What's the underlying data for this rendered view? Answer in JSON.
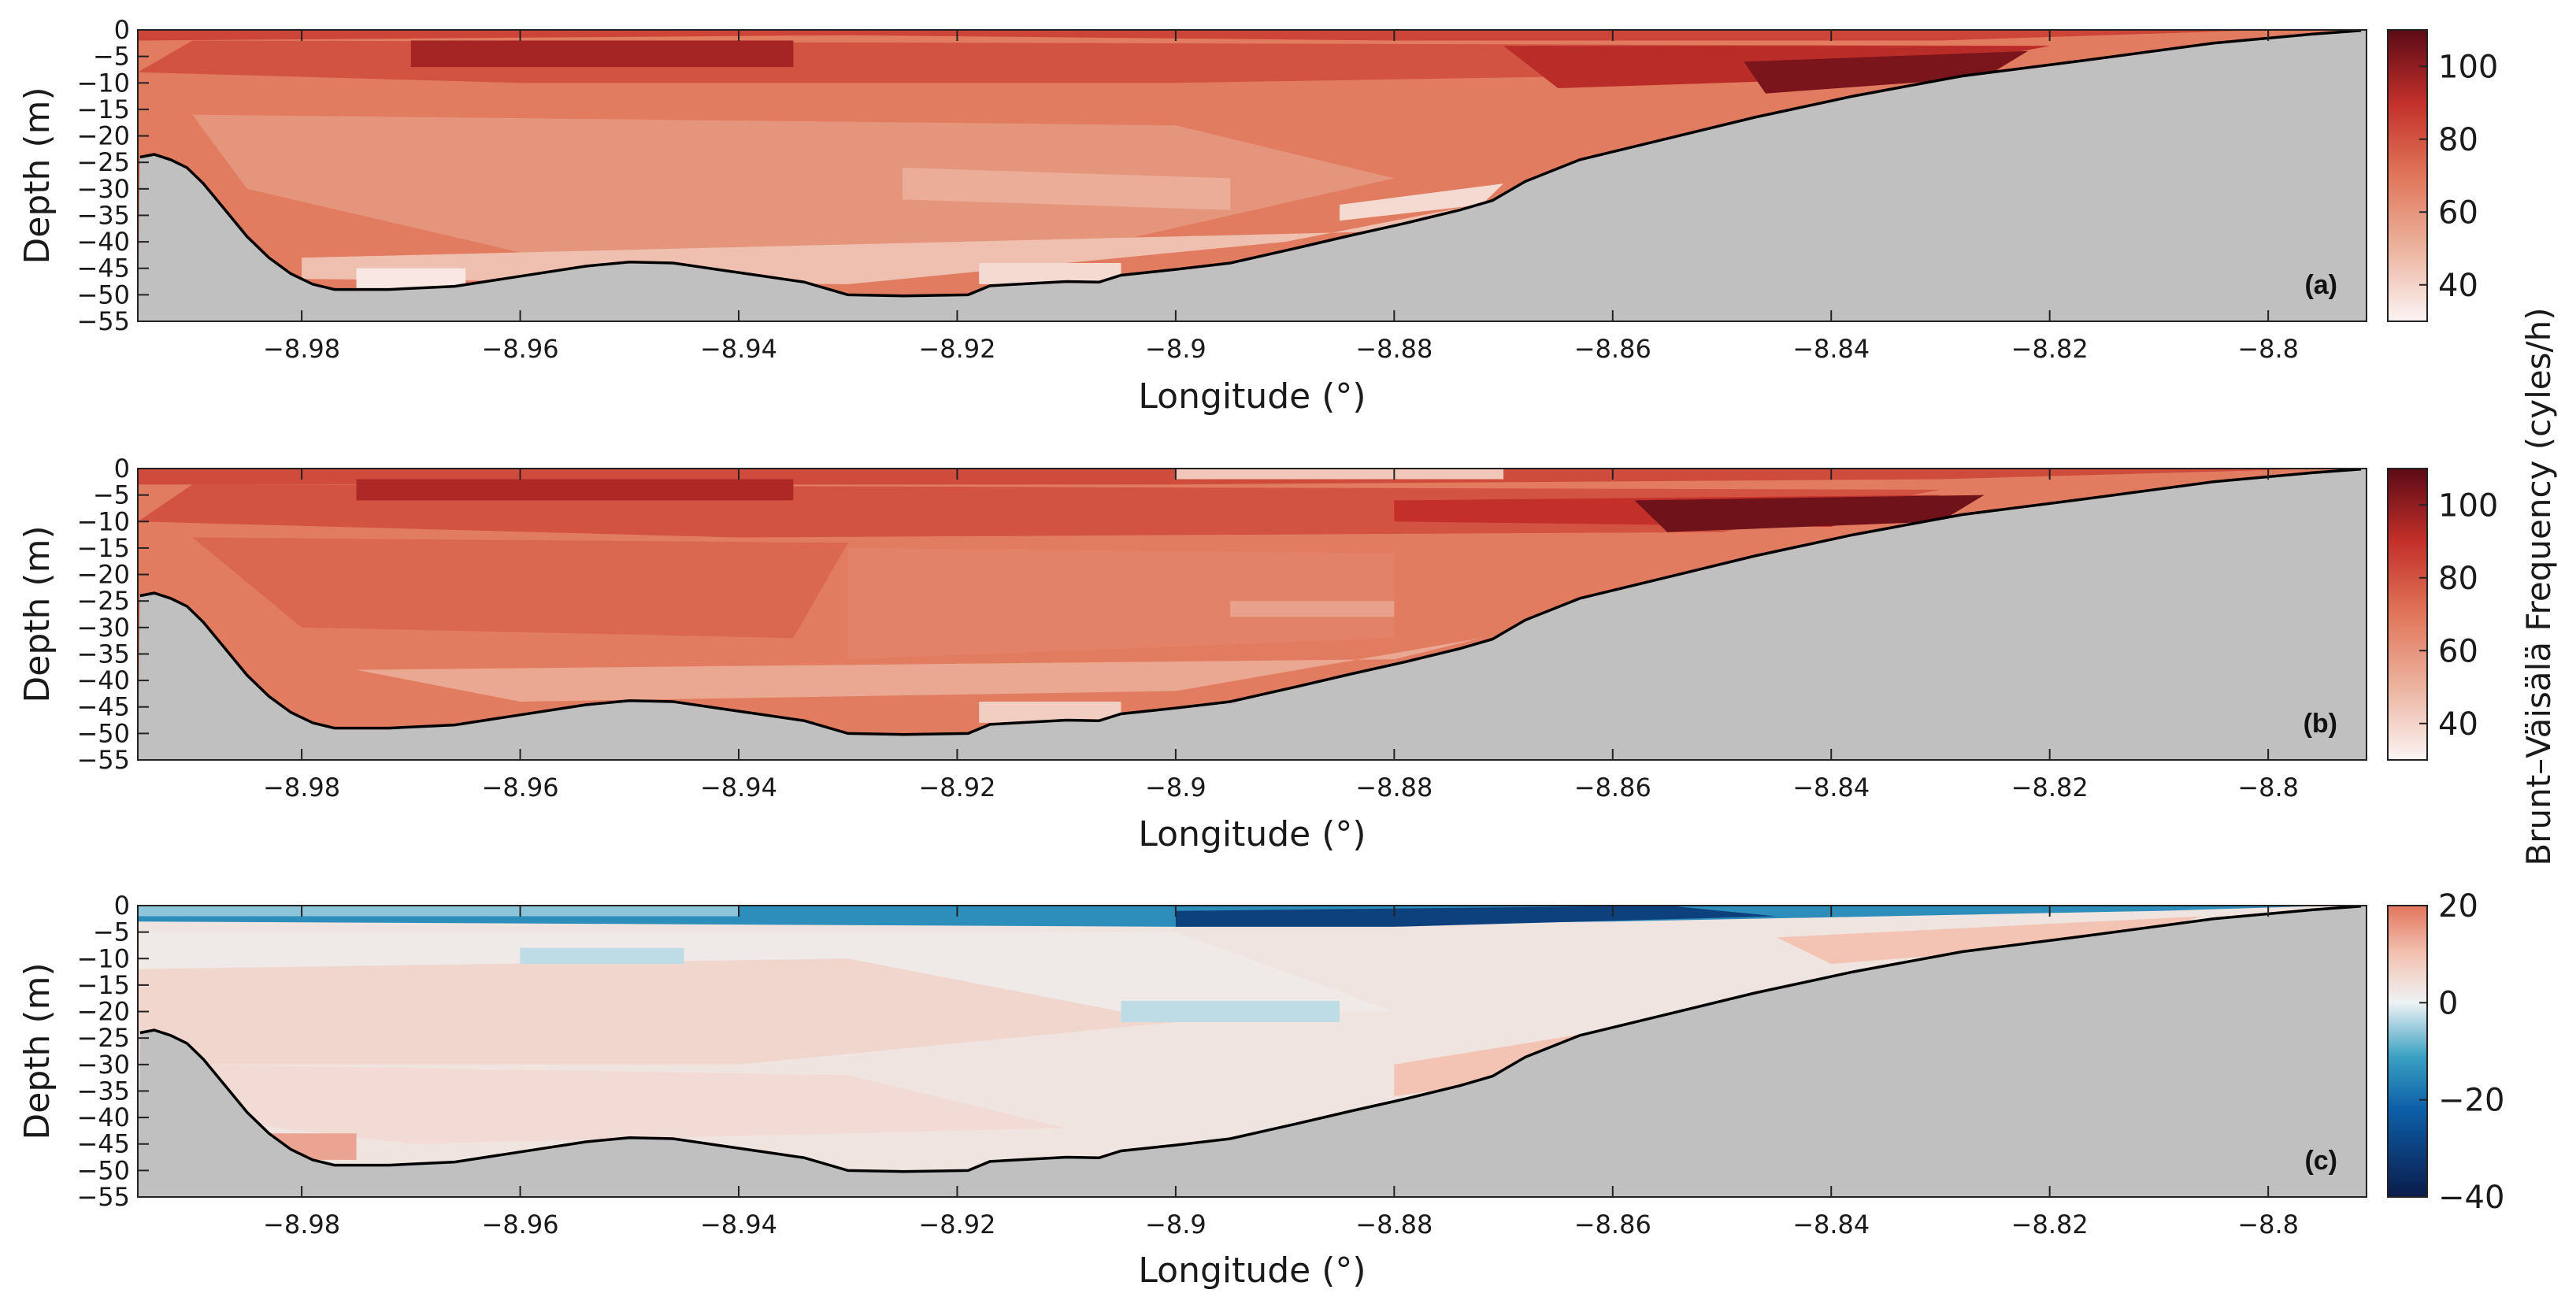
{
  "chart_data": [
    {
      "id": "a",
      "type": "heatmap",
      "panel_label": "(a)",
      "xlabel": "Longitude (°)",
      "ylabel": "Depth (m)",
      "xlim": [
        -8.995,
        -8.791
      ],
      "ylim": [
        -55,
        0
      ],
      "xticks": [
        -8.98,
        -8.96,
        -8.94,
        -8.92,
        -8.9,
        -8.88,
        -8.86,
        -8.84,
        -8.82,
        -8.8
      ],
      "xtick_labels": [
        "−8.98",
        "−8.96",
        "−8.94",
        "−8.92",
        "−8.9",
        "−8.88",
        "−8.86",
        "−8.84",
        "−8.82",
        "−8.8"
      ],
      "yticks": [
        0,
        -5,
        -10,
        -15,
        -20,
        -25,
        -30,
        -35,
        -40,
        -45,
        -50,
        -55
      ],
      "ytick_labels": [
        "0",
        "−5",
        "−10",
        "−15",
        "−20",
        "−25",
        "−30",
        "−35",
        "−40",
        "−45",
        "−50",
        "−55"
      ],
      "colorbar": {
        "range": [
          30,
          110
        ],
        "ticks": [
          40,
          60,
          80,
          100
        ],
        "tick_labels": [
          "40",
          "60",
          "80",
          "100"
        ],
        "colormap": "white-red"
      },
      "layers": [
        {
          "pts": [
            [
              -8.995,
              0
            ],
            [
              -8.8,
              0
            ],
            [
              -8.83,
              -2
            ],
            [
              -8.88,
              -2
            ],
            [
              -8.93,
              -1
            ],
            [
              -8.995,
              -2
            ]
          ],
          "v": 84
        },
        {
          "pts": [
            [
              -8.99,
              -2
            ],
            [
              -8.82,
              -3
            ],
            [
              -8.84,
              -8
            ],
            [
              -8.9,
              -10
            ],
            [
              -8.96,
              -10
            ],
            [
              -8.995,
              -8
            ]
          ],
          "v": 80
        },
        {
          "pts": [
            [
              -8.97,
              -2
            ],
            [
              -8.935,
              -2
            ],
            [
              -8.935,
              -7
            ],
            [
              -8.97,
              -7
            ]
          ],
          "v": 96
        },
        {
          "pts": [
            [
              -8.87,
              -3
            ],
            [
              -8.82,
              -3
            ],
            [
              -8.835,
              -9
            ],
            [
              -8.865,
              -11
            ]
          ],
          "v": 92
        },
        {
          "pts": [
            [
              -8.848,
              -6
            ],
            [
              -8.822,
              -4
            ],
            [
              -8.826,
              -9
            ],
            [
              -8.846,
              -12
            ]
          ],
          "v": 104
        },
        {
          "pts": [
            [
              -8.99,
              -16
            ],
            [
              -8.9,
              -18
            ],
            [
              -8.88,
              -28
            ],
            [
              -8.91,
              -42
            ],
            [
              -8.96,
              -42
            ],
            [
              -8.985,
              -30
            ]
          ],
          "v": 60
        },
        {
          "pts": [
            [
              -8.925,
              -26
            ],
            [
              -8.895,
              -28
            ],
            [
              -8.895,
              -34
            ],
            [
              -8.925,
              -32
            ]
          ],
          "v": 52
        },
        {
          "pts": [
            [
              -8.98,
              -43
            ],
            [
              -8.88,
              -38
            ],
            [
              -8.87,
              -32
            ],
            [
              -8.89,
              -40
            ],
            [
              -8.93,
              -48
            ],
            [
              -8.98,
              -47
            ]
          ],
          "v": 46
        },
        {
          "pts": [
            [
              -8.975,
              -45
            ],
            [
              -8.965,
              -45
            ],
            [
              -8.965,
              -49
            ],
            [
              -8.975,
              -49
            ]
          ],
          "v": 34
        },
        {
          "pts": [
            [
              -8.918,
              -44
            ],
            [
              -8.905,
              -44
            ],
            [
              -8.905,
              -48
            ],
            [
              -8.918,
              -48
            ]
          ],
          "v": 38
        },
        {
          "pts": [
            [
              -8.885,
              -33
            ],
            [
              -8.87,
              -29
            ],
            [
              -8.872,
              -33
            ],
            [
              -8.885,
              -36
            ]
          ],
          "v": 38
        }
      ]
    },
    {
      "id": "b",
      "type": "heatmap",
      "panel_label": "(b)",
      "xlabel": "Longitude (°)",
      "ylabel": "Depth (m)",
      "xlim": [
        -8.995,
        -8.791
      ],
      "ylim": [
        -55,
        0
      ],
      "xticks": [
        -8.98,
        -8.96,
        -8.94,
        -8.92,
        -8.9,
        -8.88,
        -8.86,
        -8.84,
        -8.82,
        -8.8
      ],
      "xtick_labels": [
        "−8.98",
        "−8.96",
        "−8.94",
        "−8.92",
        "−8.9",
        "−8.88",
        "−8.86",
        "−8.84",
        "−8.82",
        "−8.8"
      ],
      "yticks": [
        0,
        -5,
        -10,
        -15,
        -20,
        -25,
        -30,
        -35,
        -40,
        -45,
        -50,
        -55
      ],
      "ytick_labels": [
        "0",
        "−5",
        "−10",
        "−15",
        "−20",
        "−25",
        "−30",
        "−35",
        "−40",
        "−45",
        "−50",
        "−55"
      ],
      "colorbar": {
        "range": [
          30,
          110
        ],
        "ticks": [
          40,
          60,
          80,
          100
        ],
        "tick_labels": [
          "40",
          "60",
          "80",
          "100"
        ],
        "colormap": "white-red"
      },
      "layers": [
        {
          "pts": [
            [
              -8.995,
              0
            ],
            [
              -8.795,
              0
            ],
            [
              -8.83,
              -2
            ],
            [
              -8.9,
              -3
            ],
            [
              -8.995,
              -3
            ]
          ],
          "v": 82
        },
        {
          "pts": [
            [
              -8.9,
              0
            ],
            [
              -8.87,
              0
            ],
            [
              -8.87,
              -2
            ],
            [
              -8.9,
              -2
            ]
          ],
          "v": 44
        },
        {
          "pts": [
            [
              -8.99,
              -3
            ],
            [
              -8.83,
              -4
            ],
            [
              -8.85,
              -12
            ],
            [
              -8.94,
              -13
            ],
            [
              -8.995,
              -10
            ]
          ],
          "v": 80
        },
        {
          "pts": [
            [
              -8.975,
              -2
            ],
            [
              -8.935,
              -2
            ],
            [
              -8.935,
              -6
            ],
            [
              -8.975,
              -6
            ]
          ],
          "v": 94
        },
        {
          "pts": [
            [
              -8.88,
              -6
            ],
            [
              -8.83,
              -5
            ],
            [
              -8.84,
              -11
            ],
            [
              -8.88,
              -10
            ]
          ],
          "v": 90
        },
        {
          "pts": [
            [
              -8.858,
              -6
            ],
            [
              -8.826,
              -5
            ],
            [
              -8.83,
              -10
            ],
            [
              -8.855,
              -12
            ]
          ],
          "v": 106
        },
        {
          "pts": [
            [
              -8.99,
              -13
            ],
            [
              -8.93,
              -14
            ],
            [
              -8.935,
              -32
            ],
            [
              -8.98,
              -30
            ]
          ],
          "v": 74
        },
        {
          "pts": [
            [
              -8.93,
              -15
            ],
            [
              -8.88,
              -16
            ],
            [
              -8.88,
              -32
            ],
            [
              -8.93,
              -36
            ]
          ],
          "v": 66
        },
        {
          "pts": [
            [
              -8.975,
              -38
            ],
            [
              -8.88,
              -36
            ],
            [
              -8.872,
              -32
            ],
            [
              -8.9,
              -42
            ],
            [
              -8.96,
              -44
            ]
          ],
          "v": 54
        },
        {
          "pts": [
            [
              -8.918,
              -44
            ],
            [
              -8.905,
              -44
            ],
            [
              -8.905,
              -48
            ],
            [
              -8.918,
              -48
            ]
          ],
          "v": 42
        },
        {
          "pts": [
            [
              -8.895,
              -25
            ],
            [
              -8.88,
              -25
            ],
            [
              -8.88,
              -28
            ],
            [
              -8.895,
              -28
            ]
          ],
          "v": 56
        }
      ]
    },
    {
      "id": "c",
      "type": "heatmap",
      "panel_label": "(c)",
      "xlabel": "Longitude (°)",
      "ylabel": "Depth (m)",
      "xlim": [
        -8.995,
        -8.791
      ],
      "ylim": [
        -55,
        0
      ],
      "xticks": [
        -8.98,
        -8.96,
        -8.94,
        -8.92,
        -8.9,
        -8.88,
        -8.86,
        -8.84,
        -8.82,
        -8.8
      ],
      "xtick_labels": [
        "−8.98",
        "−8.96",
        "−8.94",
        "−8.92",
        "−8.9",
        "−8.88",
        "−8.86",
        "−8.84",
        "−8.82",
        "−8.8"
      ],
      "yticks": [
        0,
        -5,
        -10,
        -15,
        -20,
        -25,
        -30,
        -35,
        -40,
        -45,
        -50,
        -55
      ],
      "ytick_labels": [
        "0",
        "−5",
        "−10",
        "−15",
        "−20",
        "−25",
        "−30",
        "−35",
        "−40",
        "−45",
        "−50",
        "−55"
      ],
      "colorbar": {
        "range": [
          -40,
          20
        ],
        "ticks": [
          -40,
          -20,
          0,
          20
        ],
        "tick_labels": [
          "−40",
          "−20",
          "0",
          "20"
        ],
        "colormap": "diverging"
      },
      "layers": [
        {
          "pts": [
            [
              -8.995,
              -5
            ],
            [
              -8.9,
              -5
            ],
            [
              -8.88,
              -20
            ],
            [
              -8.95,
              -20
            ],
            [
              -8.995,
              -12
            ]
          ],
          "v": 2
        },
        {
          "pts": [
            [
              -8.995,
              -12
            ],
            [
              -8.93,
              -10
            ],
            [
              -8.9,
              -22
            ],
            [
              -8.94,
              -30
            ],
            [
              -8.995,
              -30
            ]
          ],
          "v": 6
        },
        {
          "pts": [
            [
              -8.99,
              -30
            ],
            [
              -8.93,
              -32
            ],
            [
              -8.91,
              -42
            ],
            [
              -8.97,
              -45
            ],
            [
              -8.99,
              -40
            ]
          ],
          "v": 5
        },
        {
          "pts": [
            [
              -8.88,
              -30
            ],
            [
              -8.862,
              -24
            ],
            [
              -8.87,
              -33
            ],
            [
              -8.88,
              -36
            ]
          ],
          "v": 10
        },
        {
          "pts": [
            [
              -8.845,
              -6
            ],
            [
              -8.806,
              -2
            ],
            [
              -8.815,
              -7
            ],
            [
              -8.84,
              -11
            ]
          ],
          "v": 10
        },
        {
          "pts": [
            [
              -8.984,
              -43
            ],
            [
              -8.975,
              -43
            ],
            [
              -8.975,
              -48
            ],
            [
              -8.984,
              -48
            ]
          ],
          "v": 14
        },
        {
          "pts": [
            [
              -8.96,
              -8
            ],
            [
              -8.945,
              -8
            ],
            [
              -8.945,
              -11
            ],
            [
              -8.96,
              -11
            ]
          ],
          "v": -3
        },
        {
          "pts": [
            [
              -8.905,
              -18
            ],
            [
              -8.885,
              -18
            ],
            [
              -8.885,
              -22
            ],
            [
              -8.905,
              -22
            ]
          ],
          "v": -3
        },
        {
          "pts": [
            [
              -8.995,
              0
            ],
            [
              -8.794,
              0
            ],
            [
              -8.81,
              -1
            ],
            [
              -8.86,
              -3
            ],
            [
              -8.9,
              -4
            ],
            [
              -8.995,
              -3
            ]
          ],
          "v": -14
        },
        {
          "pts": [
            [
              -8.995,
              0
            ],
            [
              -8.94,
              0
            ],
            [
              -8.94,
              -2
            ],
            [
              -8.995,
              -2
            ]
          ],
          "v": -6
        },
        {
          "pts": [
            [
              -8.9,
              -1
            ],
            [
              -8.855,
              0
            ],
            [
              -8.845,
              -2
            ],
            [
              -8.88,
              -4
            ],
            [
              -8.9,
              -4
            ]
          ],
          "v": -30
        }
      ]
    }
  ],
  "seabed": [
    [
      -8.9948,
      -24
    ],
    [
      -8.9935,
      -23.5
    ],
    [
      -8.992,
      -24.5
    ],
    [
      -8.9905,
      -26
    ],
    [
      -8.989,
      -29
    ],
    [
      -8.987,
      -34
    ],
    [
      -8.985,
      -39
    ],
    [
      -8.983,
      -43
    ],
    [
      -8.981,
      -46
    ],
    [
      -8.979,
      -48
    ],
    [
      -8.977,
      -49
    ],
    [
      -8.972,
      -49
    ],
    [
      -8.966,
      -48.4
    ],
    [
      -8.96,
      -46.5
    ],
    [
      -8.954,
      -44.6
    ],
    [
      -8.95,
      -43.8
    ],
    [
      -8.946,
      -44
    ],
    [
      -8.942,
      -45.2
    ],
    [
      -8.938,
      -46.4
    ],
    [
      -8.934,
      -47.6
    ],
    [
      -8.93,
      -50
    ],
    [
      -8.925,
      -50.2
    ],
    [
      -8.919,
      -50
    ],
    [
      -8.917,
      -48.3
    ],
    [
      -8.91,
      -47.5
    ],
    [
      -8.907,
      -47.6
    ],
    [
      -8.905,
      -46.3
    ],
    [
      -8.9,
      -45.2
    ],
    [
      -8.895,
      -44
    ],
    [
      -8.889,
      -41.2
    ],
    [
      -8.884,
      -38.8
    ],
    [
      -8.879,
      -36.5
    ],
    [
      -8.874,
      -34
    ],
    [
      -8.871,
      -32.2
    ],
    [
      -8.868,
      -28.6
    ],
    [
      -8.863,
      -24.5
    ],
    [
      -8.856,
      -21
    ],
    [
      -8.847,
      -16.5
    ],
    [
      -8.838,
      -12.5
    ],
    [
      -8.828,
      -8.7
    ],
    [
      -8.817,
      -5.8
    ],
    [
      -8.805,
      -2.5
    ],
    [
      -8.796,
      -0.8
    ],
    [
      -8.7915,
      -0.1
    ]
  ],
  "shared_colorbar_label": "Brunt–Väisälä Frequency (cyles/h)",
  "colors": {
    "land": "#c0c0c0",
    "seabed_line": "#000000",
    "sequential": [
      "#fbf4f4",
      "#ecb39f",
      "#e0765a",
      "#c3302a",
      "#5b0a16"
    ],
    "diverging": [
      "#0b1c4a",
      "#0d5fa8",
      "#3aa0c2",
      "#eef2f4",
      "#f3c4b4",
      "#e2755e"
    ]
  }
}
